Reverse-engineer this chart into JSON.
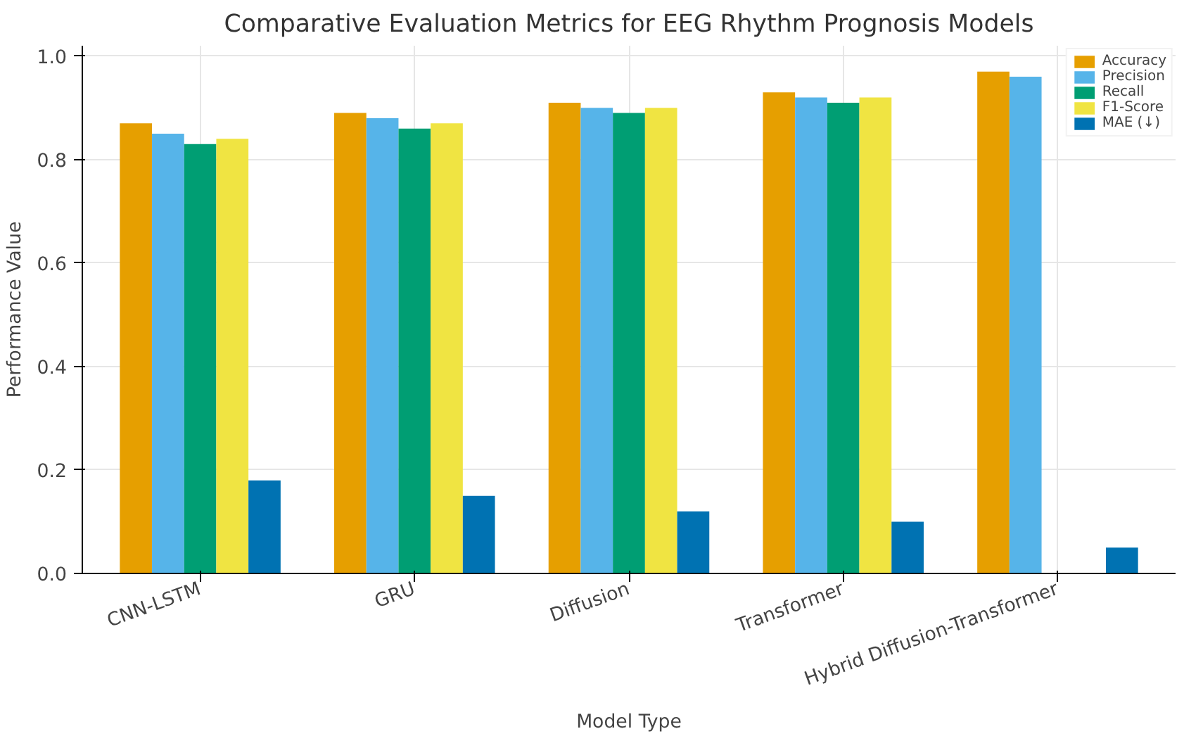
{
  "chart_data": {
    "type": "bar",
    "title": "Comparative Evaluation Metrics for EEG Rhythm Prognosis Models",
    "xlabel": "Model Type",
    "ylabel": "Performance Value",
    "categories": [
      "CNN-LSTM",
      "GRU",
      "Diffusion",
      "Transformer",
      "Hybrid Diffusion-Transformer"
    ],
    "series": [
      {
        "name": "Accuracy",
        "color": "#e69f00",
        "values": [
          0.87,
          0.89,
          0.91,
          0.93,
          0.97
        ]
      },
      {
        "name": "Precision",
        "color": "#56b4e9",
        "values": [
          0.85,
          0.88,
          0.9,
          0.92,
          0.96
        ]
      },
      {
        "name": "Recall",
        "color": "#009e73",
        "values": [
          0.83,
          0.86,
          0.89,
          0.91,
          null
        ]
      },
      {
        "name": "F1-Score",
        "color": "#f0e442",
        "values": [
          0.84,
          0.87,
          0.9,
          0.92,
          null
        ]
      },
      {
        "name": "MAE (↓)",
        "color": "#0072b2",
        "values": [
          0.18,
          0.15,
          0.12,
          0.1,
          0.05
        ]
      }
    ],
    "ylim": [
      0,
      1.02
    ],
    "yticks": [
      {
        "value": 0,
        "label": "0.0"
      },
      0.2,
      0.4,
      0.6,
      0.8,
      {
        "value": 1,
        "label": "1.0"
      }
    ],
    "grid": true,
    "legend": "top right"
  }
}
